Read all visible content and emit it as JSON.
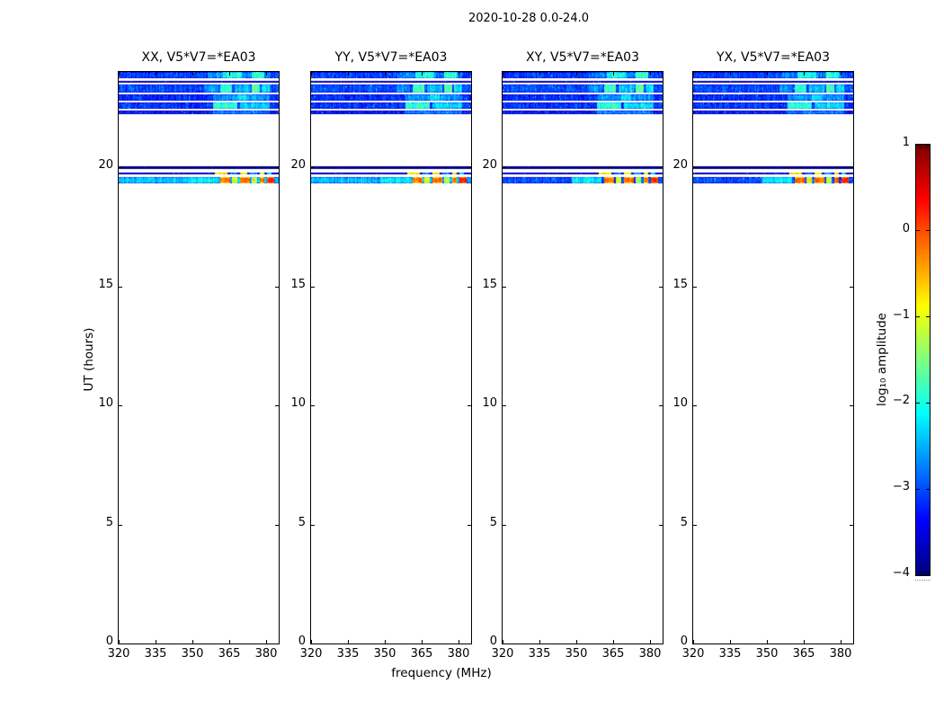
{
  "chart_data": {
    "type": "heatmap",
    "title": "2020-10-28 0.0-24.0",
    "xlabel": "frequency (MHz)",
    "ylabel": "UT (hours)",
    "xlim": [
      320,
      385
    ],
    "ylim": [
      0,
      24
    ],
    "xticks": [
      320,
      335,
      350,
      365,
      380
    ],
    "yticks": [
      0,
      5,
      10,
      15,
      20
    ],
    "grid": false,
    "panels": [
      {
        "label": "XX, V5*V7=*EA03",
        "seed": 11
      },
      {
        "label": "YY, V5*V7=*EA03",
        "seed": 23
      },
      {
        "label": "XY, V5*V7=*EA03",
        "seed": 37
      },
      {
        "label": "YX, V5*V7=*EA03",
        "seed": 53
      }
    ],
    "colorbar": {
      "label": "log₁₀ amplitude",
      "lim": [
        -4,
        1
      ],
      "ticks": [
        1,
        0,
        -1,
        -2,
        -3,
        -4
      ],
      "colormap": "jet",
      "position": "right"
    },
    "bands": [
      {
        "ut": [
          23.72,
          24.0
        ],
        "base": -3.05,
        "patches": [
          {
            "f": [
              356,
              381
            ],
            "v": -2.7
          },
          {
            "f": [
              362,
              370
            ],
            "v": -2.0
          },
          {
            "f": [
              374,
              379
            ],
            "v": -1.9
          }
        ]
      },
      {
        "ut": [
          23.55,
          23.64
        ],
        "base": -3.3
      },
      {
        "ut": [
          23.12,
          23.47
        ],
        "base": -3.0,
        "patches": [
          {
            "f": [
              355,
              360
            ],
            "v": -2.6
          },
          {
            "f": [
              361,
              366
            ],
            "v": -1.8
          },
          {
            "f": [
              367,
              373
            ],
            "v": -2.4
          },
          {
            "f": [
              374,
              377
            ],
            "v": -1.7
          },
          {
            "f": [
              378,
              381
            ],
            "v": -2.2
          }
        ]
      },
      {
        "ut": [
          22.8,
          23.04
        ],
        "base": -3.15,
        "patches": [
          {
            "f": [
              358,
              381
            ],
            "v": -2.6
          },
          {
            "f": [
              368,
              372
            ],
            "v": -2.2
          }
        ]
      },
      {
        "ut": [
          22.45,
          22.7
        ],
        "base": -3.1,
        "patches": [
          {
            "f": [
              358,
              368
            ],
            "v": -1.9
          },
          {
            "f": [
              369,
              381
            ],
            "v": -2.3
          }
        ]
      },
      {
        "ut": [
          22.21,
          22.37
        ],
        "base": -3.25,
        "patches": [
          {
            "f": [
              358,
              381
            ],
            "v": -2.7
          }
        ]
      },
      {
        "ut": [
          19.93,
          20.03
        ],
        "base": -4,
        "noise": 0.05
      },
      {
        "ut": [
          19.69,
          19.79
        ],
        "base": -3.2,
        "patches": [
          {
            "f": [
              359,
              364
            ],
            "v": -0.3
          },
          {
            "f": [
              365,
              368
            ],
            "v": -2.4
          },
          {
            "f": [
              369,
              372
            ],
            "v": -0.4
          },
          {
            "f": [
              373,
              376
            ],
            "v": -2.2
          },
          {
            "f": [
              377,
              379
            ],
            "v": -0.3
          },
          {
            "f": [
              380,
              382
            ],
            "v": -1.8
          }
        ]
      },
      {
        "ut": [
          19.32,
          19.6
        ],
        "base": -2.45,
        "baseByPanel": [
          -2.45,
          -2.45,
          -3.0,
          -3.0
        ],
        "patches": [
          {
            "f": [
              348,
              360
            ],
            "v": -2.2
          },
          {
            "f": [
              361,
              365
            ],
            "v": -0.2
          },
          {
            "f": [
              366,
              368
            ],
            "v": -0.9
          },
          {
            "f": [
              369,
              373
            ],
            "v": -0.15
          },
          {
            "f": [
              374,
              376
            ],
            "v": -1.2
          },
          {
            "f": [
              377,
              379
            ],
            "v": -0.2
          },
          {
            "f": [
              380,
              383
            ],
            "v": 0.2
          }
        ]
      }
    ]
  }
}
